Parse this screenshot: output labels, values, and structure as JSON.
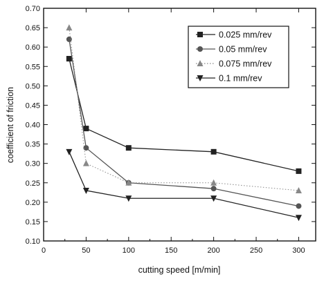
{
  "chart_data": {
    "type": "line",
    "title": "",
    "xlabel": "cutting speed [m/min]",
    "ylabel": "coefficient of friction",
    "xlim": [
      0,
      320
    ],
    "ylim": [
      0.1,
      0.7
    ],
    "xticks": [
      "0",
      "50",
      "100",
      "150",
      "200",
      "250",
      "300"
    ],
    "yticks": [
      "0.10",
      "0.15",
      "0.20",
      "0.25",
      "0.30",
      "0.35",
      "0.40",
      "0.45",
      "0.50",
      "0.55",
      "0.60",
      "0.65",
      "0.70"
    ],
    "legend_position": "top-right",
    "x": [
      30,
      50,
      100,
      200,
      300
    ],
    "series": [
      {
        "name": "0.025 mm/rev",
        "marker": "square",
        "line": "solid",
        "color": "#222222",
        "values": [
          0.57,
          0.39,
          0.34,
          0.33,
          0.28
        ]
      },
      {
        "name": "0.05 mm/rev",
        "marker": "circle",
        "line": "solid",
        "color": "#555555",
        "values": [
          0.62,
          0.34,
          0.25,
          0.235,
          0.19
        ]
      },
      {
        "name": "0.075 mm/rev",
        "marker": "triangle-up",
        "line": "dotted",
        "color": "#888888",
        "values": [
          0.65,
          0.3,
          0.25,
          0.25,
          0.23
        ]
      },
      {
        "name": "0.1 mm/rev",
        "marker": "triangle-down",
        "line": "solid",
        "color": "#222222",
        "values": [
          0.33,
          0.23,
          0.21,
          0.21,
          0.16
        ]
      }
    ]
  }
}
